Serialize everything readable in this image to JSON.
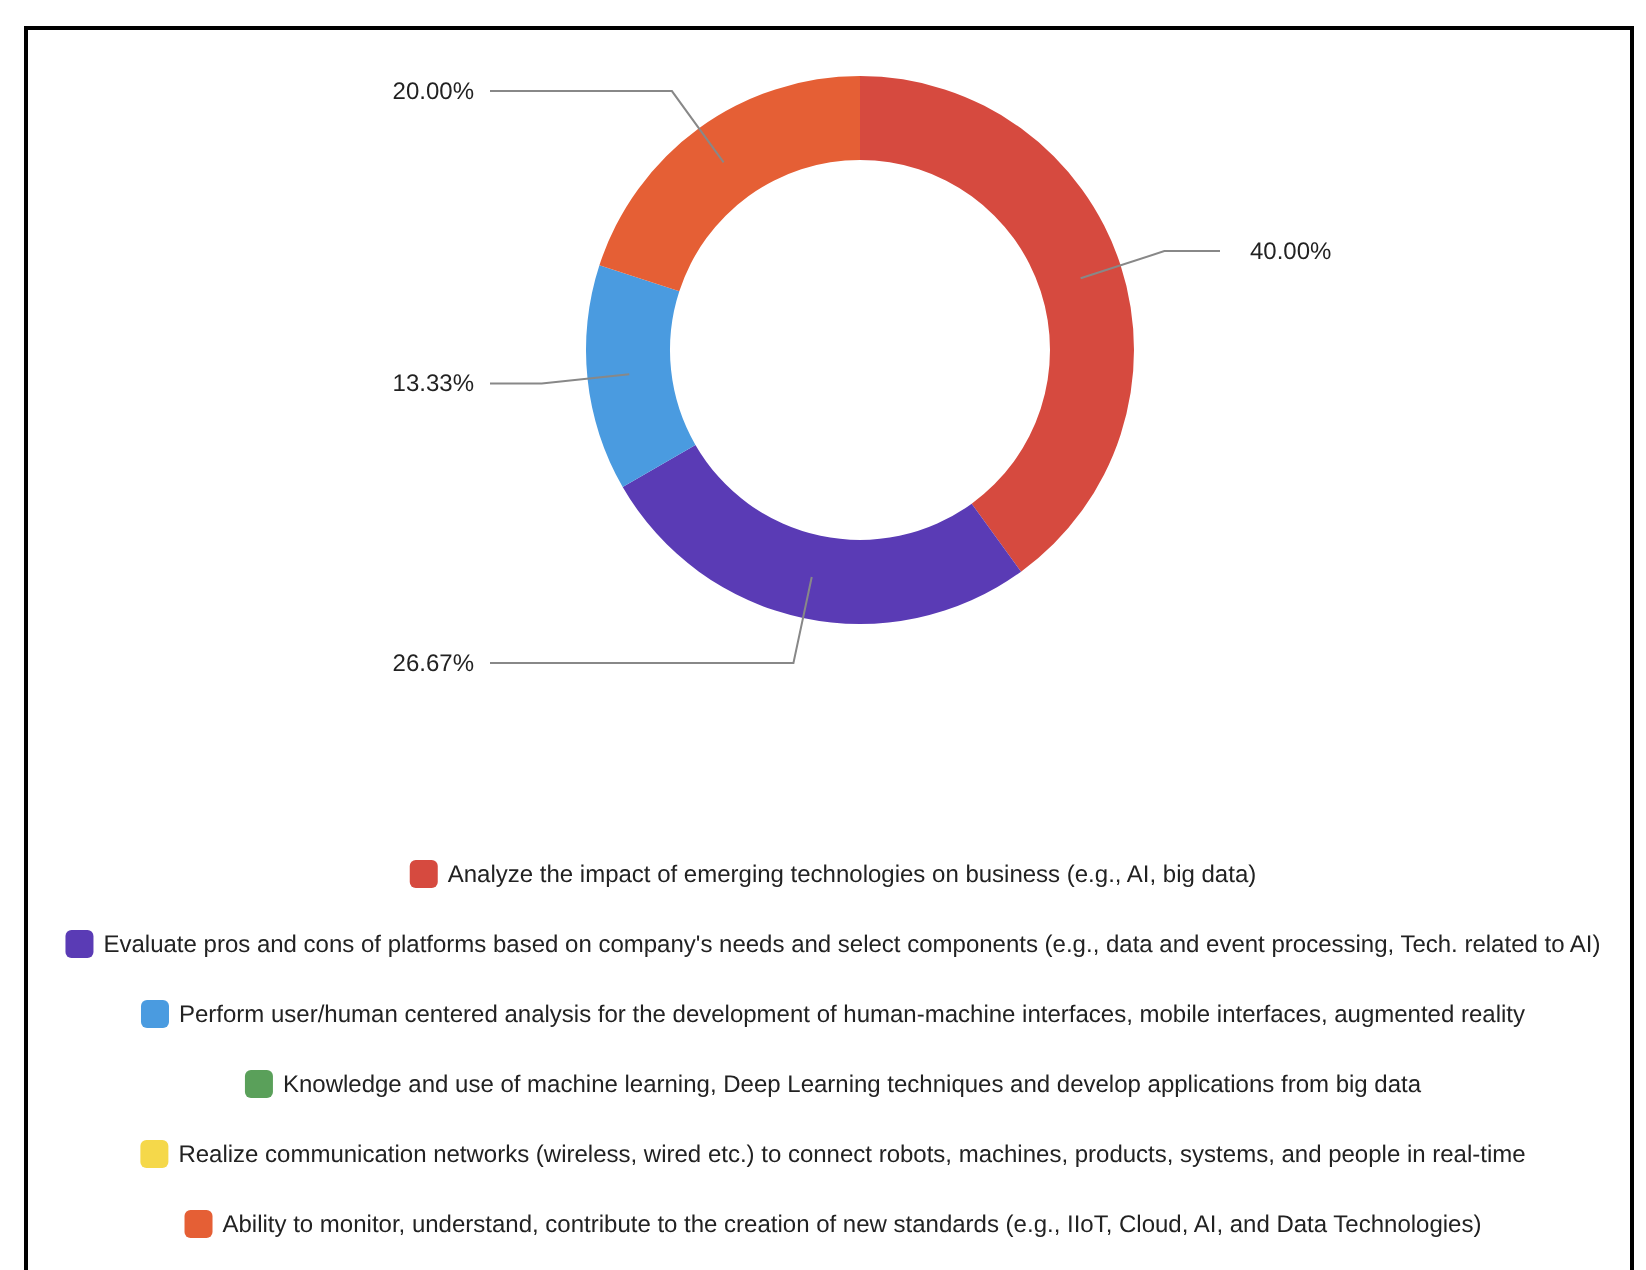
{
  "chart_data": {
    "type": "donut",
    "categories": [
      "Analyze the impact of emerging technologies on business (e.g., AI, big data)",
      "Evaluate pros and cons of platforms based on company's needs and select components (e.g., data and event processing, Tech. related to AI)",
      "Perform user/human centered analysis for the development of human-machine interfaces, mobile interfaces, augmented reality",
      "Knowledge and use of machine learning, Deep Learning techniques and develop applications from big data",
      "Realize communication networks (wireless, wired etc.) to connect robots, machines, products, systems, and people in real-time",
      "Ability to monitor, understand, contribute to the creation of new standards (e.g., IIoT, Cloud, AI, and Data Technologies)"
    ],
    "values": [
      40,
      26.67,
      13.33,
      0,
      0,
      20
    ],
    "colors": [
      "#d64a3f",
      "#5a3bb5",
      "#4a9be0",
      "#5aa05a",
      "#f5d84a",
      "#e55f35"
    ],
    "value_labels": [
      "40.00%",
      "26.67%",
      "13.33%",
      null,
      null,
      "20.00%"
    ],
    "legend": "bottom"
  }
}
